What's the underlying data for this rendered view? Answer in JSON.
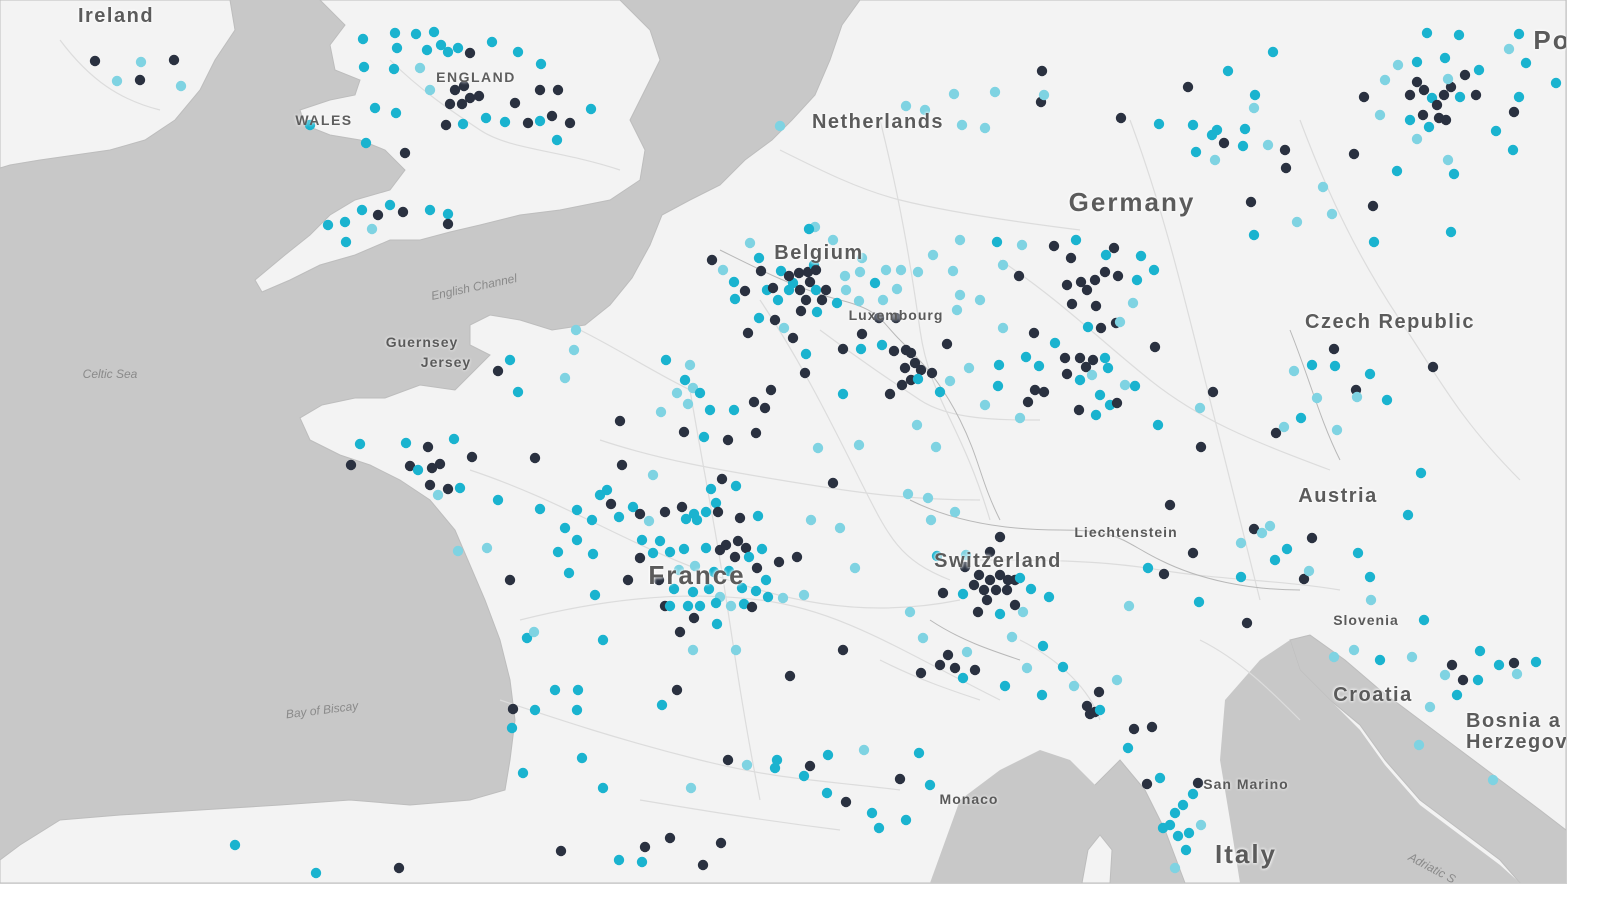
{
  "map": {
    "colors": {
      "sea": "#c8c8c8",
      "land": "#f3f3f3",
      "road": "#dcdcdc",
      "marker_dark": "#2a3140",
      "marker_teal": "#1ab3cf",
      "marker_light": "#7fd3e2"
    },
    "labels": {
      "ireland": "Ireland",
      "england": "ENGLAND",
      "wales": "WALES",
      "netherlands": "Netherlands",
      "germany": "Germany",
      "belgium": "Belgium",
      "luxembourg": "Luxembourg",
      "czech_republic": "Czech Republic",
      "guernsey": "Guernsey",
      "jersey": "Jersey",
      "english_channel": "English Channel",
      "celtic_sea": "Celtic Sea",
      "bay_of_biscay": "Bay of Biscay",
      "austria": "Austria",
      "liechtenstein": "Liechtenstein",
      "switzerland": "Switzerland",
      "france": "France",
      "slovenia": "Slovenia",
      "croatia": "Croatia",
      "bosnia": "Bosnia a\nHerzegov",
      "monaco": "Monaco",
      "san_marino": "San Marino",
      "italy": "Italy",
      "adriatic": "Adriatic S",
      "poland_partial": "Po"
    }
  }
}
